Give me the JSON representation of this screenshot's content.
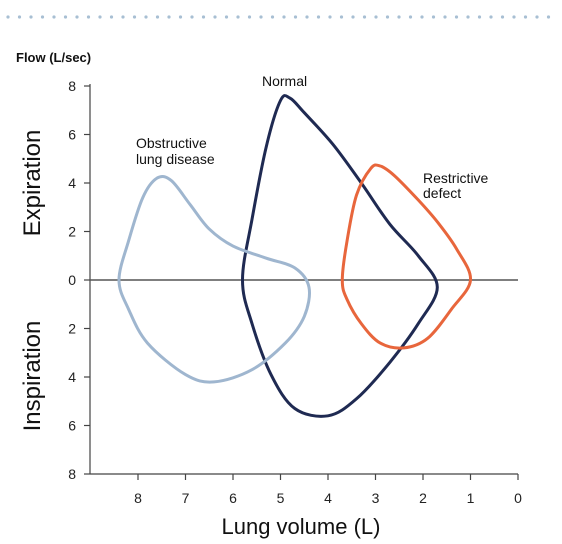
{
  "chart_data": {
    "type": "line",
    "title": "",
    "y_axis_title": "Flow (L/sec)",
    "xlabel": "Lung volume (L)",
    "upper_region_label": "Expiration",
    "lower_region_label": "Inspiration",
    "x_ticks": [
      "8",
      "7",
      "6",
      "5",
      "4",
      "3",
      "2",
      "1",
      "0"
    ],
    "y_ticks": [
      "8",
      "6",
      "4",
      "2",
      "0",
      "2",
      "4",
      "6",
      "8"
    ],
    "xlim": [
      9,
      0
    ],
    "ylim": [
      -8,
      8
    ],
    "x_reversed": true,
    "grid": false,
    "colors": {
      "normal": "#1f2a52",
      "obstructive": "#9fb6cf",
      "restrictive": "#e8663c",
      "axis": "#444444",
      "dots": "#a8bfd3"
    },
    "series": [
      {
        "label": "Normal",
        "color": "#1f2a52",
        "points": [
          [
            5.8,
            0
          ],
          [
            5.6,
            2.5
          ],
          [
            5.3,
            5.5
          ],
          [
            5.0,
            7.4
          ],
          [
            4.8,
            7.5
          ],
          [
            4.5,
            6.9
          ],
          [
            3.9,
            5.6
          ],
          [
            3.3,
            4.0
          ],
          [
            2.7,
            2.3
          ],
          [
            2.1,
            1.0
          ],
          [
            1.7,
            -0.3
          ],
          [
            2.1,
            -1.8
          ],
          [
            2.7,
            -3.4
          ],
          [
            3.4,
            -4.9
          ],
          [
            4.0,
            -5.6
          ],
          [
            4.7,
            -5.3
          ],
          [
            5.2,
            -3.9
          ],
          [
            5.6,
            -1.8
          ],
          [
            5.8,
            0
          ]
        ]
      },
      {
        "label": "Obstructive lung disease",
        "color": "#9fb6cf",
        "points": [
          [
            8.4,
            0
          ],
          [
            8.2,
            1.6
          ],
          [
            7.9,
            3.4
          ],
          [
            7.6,
            4.2
          ],
          [
            7.3,
            4.1
          ],
          [
            6.9,
            3.1
          ],
          [
            6.5,
            2.1
          ],
          [
            6.0,
            1.4
          ],
          [
            5.3,
            0.9
          ],
          [
            4.7,
            0.5
          ],
          [
            4.4,
            -0.3
          ],
          [
            4.5,
            -1.5
          ],
          [
            4.9,
            -2.6
          ],
          [
            5.6,
            -3.7
          ],
          [
            6.4,
            -4.2
          ],
          [
            7.0,
            -3.9
          ],
          [
            7.8,
            -2.6
          ],
          [
            8.2,
            -1.2
          ],
          [
            8.4,
            0
          ]
        ]
      },
      {
        "label": "Restrictive defect",
        "color": "#e8663c",
        "points": [
          [
            3.7,
            0
          ],
          [
            3.6,
            1.6
          ],
          [
            3.4,
            3.5
          ],
          [
            3.1,
            4.6
          ],
          [
            2.9,
            4.7
          ],
          [
            2.6,
            4.3
          ],
          [
            2.1,
            3.3
          ],
          [
            1.7,
            2.4
          ],
          [
            1.3,
            1.3
          ],
          [
            1.0,
            0
          ],
          [
            1.4,
            -1.2
          ],
          [
            1.9,
            -2.4
          ],
          [
            2.4,
            -2.8
          ],
          [
            2.9,
            -2.6
          ],
          [
            3.3,
            -1.8
          ],
          [
            3.6,
            -0.8
          ],
          [
            3.7,
            0
          ]
        ]
      }
    ],
    "annotations": [
      {
        "text_lines": [
          "Normal"
        ],
        "target": "normal"
      },
      {
        "text_lines": [
          "Obstructive",
          "lung disease"
        ],
        "target": "obstructive"
      },
      {
        "text_lines": [
          "Restrictive",
          "defect"
        ],
        "target": "restrictive"
      }
    ]
  }
}
